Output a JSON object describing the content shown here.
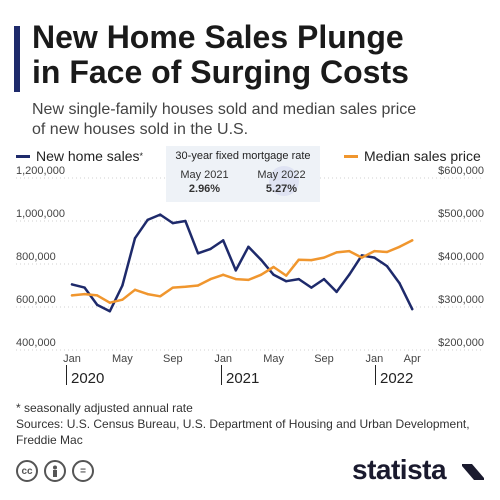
{
  "header": {
    "title_line1": "New Home Sales Plunge",
    "title_line2": "in Face of Surging Costs",
    "subtitle_line1": "New single-family houses sold and median sales price",
    "subtitle_line2": "of new houses sold in the U.S."
  },
  "legend": {
    "sales_label": "New home sales",
    "sales_marker": "*",
    "price_label": "Median sales price"
  },
  "mortgage_box": {
    "title": "30-year fixed mortgage rate",
    "items": [
      {
        "date": "May 2021",
        "rate": "2.96%"
      },
      {
        "date": "May 2022",
        "rate": "5.27%"
      }
    ]
  },
  "years": [
    "2020",
    "2021",
    "2022"
  ],
  "footer": {
    "footnote": "* seasonally adjusted annual rate",
    "sources": "Sources: U.S. Census Bureau, U.S. Department of Housing and Urban Development, Freddie Mac",
    "brand": "statista",
    "license_icons": [
      "cc-icon",
      "person-icon",
      "equals-icon"
    ]
  },
  "colors": {
    "sales": "#1e2a6b",
    "price": "#f0962e",
    "title_bar": "#1e2a6b",
    "mortgage_box": "#eef2f7"
  },
  "chart_data": {
    "type": "line",
    "x": [
      "Jan 2020",
      "Feb 2020",
      "Mar 2020",
      "Apr 2020",
      "May 2020",
      "Jun 2020",
      "Jul 2020",
      "Aug 2020",
      "Sep 2020",
      "Oct 2020",
      "Nov 2020",
      "Dec 2020",
      "Jan 2021",
      "Feb 2021",
      "Mar 2021",
      "Apr 2021",
      "May 2021",
      "Jun 2021",
      "Jul 2021",
      "Aug 2021",
      "Sep 2021",
      "Oct 2021",
      "Nov 2021",
      "Dec 2021",
      "Jan 2022",
      "Feb 2022",
      "Mar 2022",
      "Apr 2022"
    ],
    "x_tick_labels": [
      "Jan",
      "May",
      "Sep",
      "Jan",
      "May",
      "Sep",
      "Jan",
      "Apr"
    ],
    "x_tick_index": [
      0,
      4,
      8,
      12,
      16,
      20,
      24,
      27
    ],
    "series": [
      {
        "name": "New home sales",
        "axis": "left",
        "values": [
          705000,
          690000,
          610000,
          580000,
          700000,
          920000,
          1005000,
          1030000,
          990000,
          1000000,
          850000,
          870000,
          910000,
          770000,
          880000,
          820000,
          750000,
          720000,
          730000,
          690000,
          730000,
          670000,
          750000,
          840000,
          830000,
          790000,
          710000,
          590000
        ]
      },
      {
        "name": "Median sales price",
        "axis": "right",
        "values": [
          327000,
          330000,
          327000,
          310000,
          317000,
          340000,
          330000,
          325000,
          345000,
          347000,
          350000,
          365000,
          375000,
          365000,
          363000,
          375000,
          393000,
          373000,
          410000,
          409000,
          415000,
          427000,
          430000,
          415000,
          430000,
          428000,
          440000,
          455000
        ]
      }
    ],
    "y_left": {
      "range": [
        400000,
        1200000
      ],
      "ticks": [
        "400,000",
        "600,000",
        "800,000",
        "1,000,000",
        "1,200,000"
      ],
      "tick_values": [
        400000,
        600000,
        800000,
        1000000,
        1200000
      ]
    },
    "y_right": {
      "range": [
        200000,
        600000
      ],
      "ticks": [
        "$200,000",
        "$300,000",
        "$400,000",
        "$500,000",
        "$600,000"
      ],
      "tick_values": [
        200000,
        300000,
        400000,
        500000,
        600000
      ]
    },
    "grid": true,
    "legend_position": "top"
  }
}
